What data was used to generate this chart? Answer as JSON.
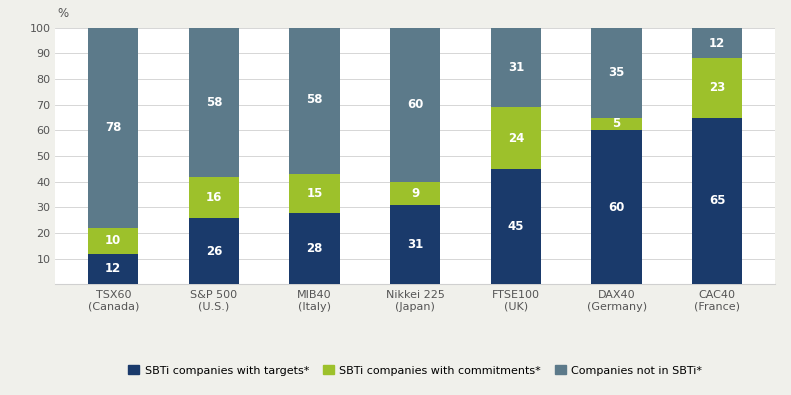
{
  "categories": [
    "TSX60\n(Canada)",
    "S&P 500\n(U.S.)",
    "MIB40\n(Italy)",
    "Nikkei 225\n(Japan)",
    "FTSE100\n(UK)",
    "DAX40\n(Germany)",
    "CAC40\n(France)"
  ],
  "sbti_targets": [
    12,
    26,
    28,
    31,
    45,
    60,
    65
  ],
  "sbti_commitments": [
    10,
    16,
    15,
    9,
    24,
    5,
    23
  ],
  "not_sbti": [
    78,
    58,
    58,
    60,
    31,
    35,
    12
  ],
  "color_targets": "#1a3a6b",
  "color_commitments": "#9dc12b",
  "color_not_sbti": "#5c7a8a",
  "ylim": [
    0,
    100
  ],
  "yticks": [
    0,
    10,
    20,
    30,
    40,
    50,
    60,
    70,
    80,
    90,
    100
  ],
  "legend_labels": [
    "SBTi companies with targets*",
    "SBTi companies with commitments*",
    "Companies not in SBTi*"
  ],
  "figure_bg": "#f0f0eb",
  "axes_bg": "#ffffff",
  "text_color_white": "#ffffff",
  "bar_width": 0.5,
  "grid_color": "#d0d0d0",
  "tick_label_color": "#555555",
  "percent_label": "%"
}
